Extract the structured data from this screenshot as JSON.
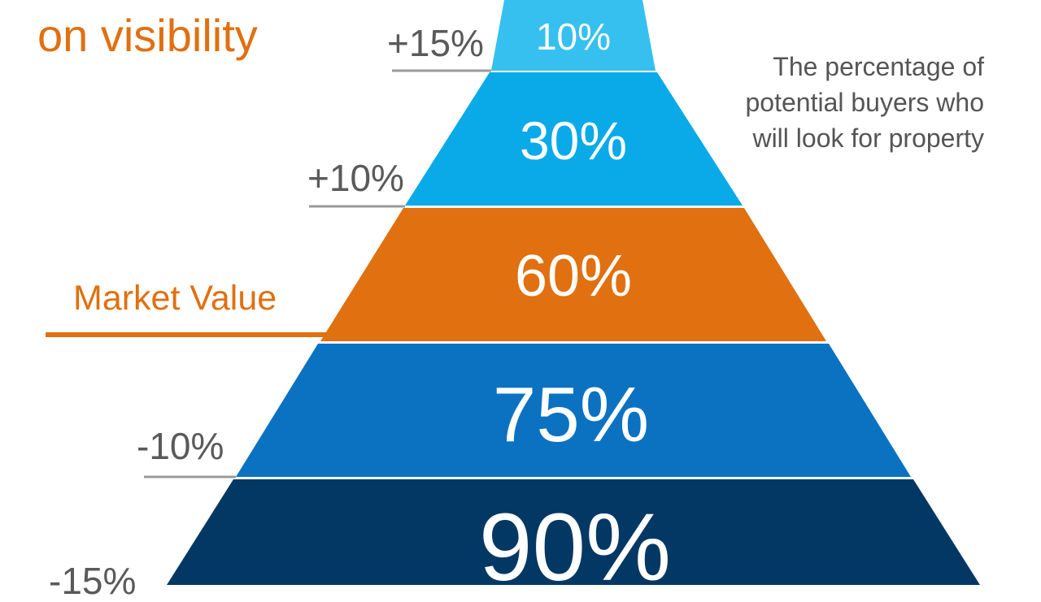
{
  "title": "on visibility",
  "description": {
    "lines": [
      "The percentage of",
      "potential buyers who",
      "will look for property"
    ]
  },
  "market_value_label": "Market Value",
  "colors": {
    "accent": "#e07010",
    "tier_1": "#36c0f0",
    "tier_2": "#0aaae8",
    "tier_3": "#e07010",
    "tier_4": "#0b72c2",
    "tier_5": "#043864",
    "rule": "#9a9a9a",
    "text_gray": "#5a5a5a"
  },
  "tiers": [
    {
      "pct": "10%",
      "price_adj": "+15%"
    },
    {
      "pct": "30%",
      "price_adj": "+10%"
    },
    {
      "pct": "60%",
      "price_adj": ""
    },
    {
      "pct": "75%",
      "price_adj": "-10%"
    },
    {
      "pct": "90%",
      "price_adj": "-15%"
    }
  ]
}
